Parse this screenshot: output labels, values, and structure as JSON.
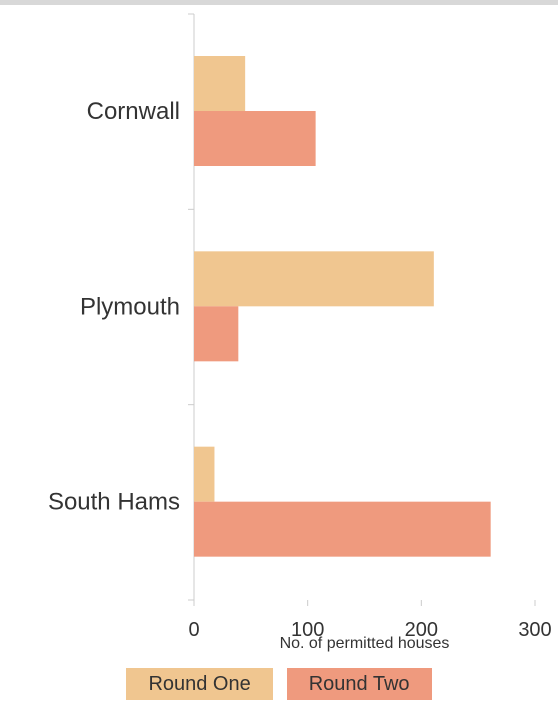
{
  "chart_data": {
    "type": "bar",
    "orientation": "horizontal",
    "categories": [
      "Cornwall",
      "Plymouth",
      "South Hams"
    ],
    "series": [
      {
        "name": "Round One",
        "values": [
          45,
          211,
          18
        ],
        "color": "#f0c690"
      },
      {
        "name": "Round Two",
        "values": [
          107,
          39,
          261
        ],
        "color": "#ef9a7e"
      }
    ],
    "xlabel": "No. of permitted houses",
    "xlim": [
      0,
      300
    ],
    "xticks": [
      0,
      100,
      200,
      300
    ],
    "grid": false,
    "legend_position": "bottom"
  }
}
